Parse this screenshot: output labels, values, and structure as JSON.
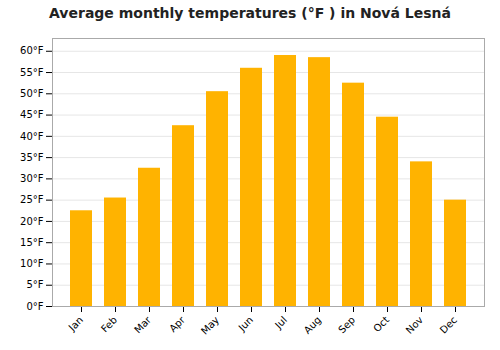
{
  "chart_data": {
    "type": "bar",
    "title": "Average monthly temperatures (°F ) in Nová Lesná",
    "categories": [
      "Jan",
      "Feb",
      "Mar",
      "Apr",
      "May",
      "Jun",
      "Jul",
      "Aug",
      "Sep",
      "Oct",
      "Nov",
      "Dec"
    ],
    "values": [
      22.5,
      25.5,
      32.5,
      42.5,
      50.5,
      56.0,
      59.0,
      58.5,
      52.5,
      44.5,
      34.0,
      25.0
    ],
    "color": "#FFB300",
    "ylim": [
      0,
      63
    ],
    "yticks": [
      {
        "value": 0,
        "label": "0°F"
      },
      {
        "value": 5,
        "label": "5°F"
      },
      {
        "value": 10,
        "label": "10°F"
      },
      {
        "value": 15,
        "label": "15°F"
      },
      {
        "value": 20,
        "label": "20°F"
      },
      {
        "value": 25,
        "label": "25°F"
      },
      {
        "value": 30,
        "label": "30°F"
      },
      {
        "value": 35,
        "label": "35°F"
      },
      {
        "value": 40,
        "label": "40°F"
      },
      {
        "value": 45,
        "label": "45°F"
      },
      {
        "value": 50,
        "label": "50°F"
      },
      {
        "value": 55,
        "label": "55°F"
      },
      {
        "value": 60,
        "label": "60°F"
      }
    ],
    "grid": true
  }
}
